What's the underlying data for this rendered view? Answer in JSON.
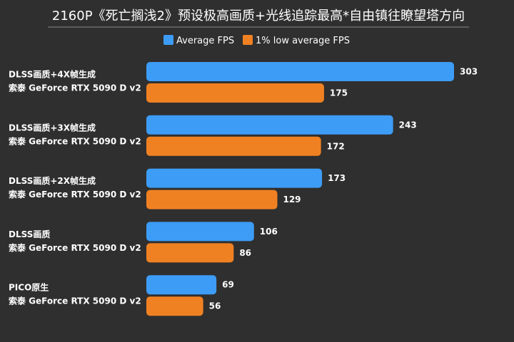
{
  "colors": {
    "background": "#2f2f2f",
    "average": "#3d9cf5",
    "low": "#f08122",
    "rule": "#8a8a8a"
  },
  "chart_data": {
    "type": "bar",
    "orientation": "horizontal",
    "title": "2160P《死亡搁浅2》预设极高画质+光线追踪最高*自由镇往瞭望塔方向",
    "legend_position": "top",
    "categories": [
      [
        "DLSS画质+4X帧生成",
        "索泰 GeForce RTX 5090 D v2"
      ],
      [
        "DLSS画质+3X帧生成",
        "索泰 GeForce RTX 5090 D v2"
      ],
      [
        "DLSS画质+2X帧生成",
        "索泰 GeForce RTX 5090 D v2"
      ],
      [
        "DLSS画质",
        "索泰 GeForce RTX 5090 D v2"
      ],
      [
        "PICO原生",
        "索泰 GeForce RTX 5090 D v2"
      ]
    ],
    "series": [
      {
        "name": "Average FPS",
        "color": "#3d9cf5",
        "values": [
          303,
          243,
          173,
          106,
          69
        ]
      },
      {
        "name": "1% low average FPS",
        "color": "#f08122",
        "values": [
          175,
          172,
          129,
          86,
          56
        ]
      }
    ],
    "xlim": [
      0,
      303
    ],
    "grid": false
  }
}
